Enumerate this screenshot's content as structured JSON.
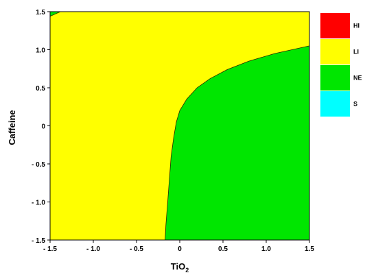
{
  "chart_data": {
    "type": "area",
    "xlabel": "TiO",
    "xlabel_subscript": "2",
    "ylabel": "Caffeine",
    "xlim": [
      -1.5,
      1.5
    ],
    "ylim": [
      -1.5,
      1.5
    ],
    "x_ticks": [
      {
        "value": -1.5,
        "label": "- 1.5"
      },
      {
        "value": -1.0,
        "label": "- 1.0"
      },
      {
        "value": -0.5,
        "label": "- 0.5"
      },
      {
        "value": 0.0,
        "label": "0"
      },
      {
        "value": 0.5,
        "label": "0.5"
      },
      {
        "value": 1.0,
        "label": "1.0"
      },
      {
        "value": 1.5,
        "label": "1.5"
      }
    ],
    "y_ticks": [
      {
        "value": 1.5,
        "label": "1.5"
      },
      {
        "value": 1.0,
        "label": "1.0"
      },
      {
        "value": 0.5,
        "label": "0.5"
      },
      {
        "value": 0.0,
        "label": "0"
      },
      {
        "value": -0.5,
        "label": "- 0.5"
      },
      {
        "value": -1.0,
        "label": "- 1.0"
      },
      {
        "value": -1.5,
        "label": "- 1.5"
      }
    ],
    "grid": false,
    "legend_position": "right",
    "legend": [
      {
        "label": "HI",
        "color": "#ff0000"
      },
      {
        "label": "LI",
        "color": "#ffff00"
      },
      {
        "label": "NE",
        "color": "#00e600"
      },
      {
        "label": "S",
        "color": "#00ffff"
      }
    ],
    "regions": [
      {
        "class": "LI",
        "color": "#ffff00",
        "role": "background"
      },
      {
        "class": "NE",
        "color": "#00e600",
        "boundary": [
          [
            -0.17,
            -1.5
          ],
          [
            -0.16,
            -1.3
          ],
          [
            -0.14,
            -1.0
          ],
          [
            -0.12,
            -0.7
          ],
          [
            -0.1,
            -0.4
          ],
          [
            -0.07,
            -0.15
          ],
          [
            -0.04,
            0.05
          ],
          [
            0.0,
            0.2
          ],
          [
            0.08,
            0.35
          ],
          [
            0.2,
            0.5
          ],
          [
            0.35,
            0.62
          ],
          [
            0.55,
            0.74
          ],
          [
            0.8,
            0.85
          ],
          [
            1.1,
            0.95
          ],
          [
            1.5,
            1.05
          ],
          [
            1.5,
            -1.5
          ]
        ]
      },
      {
        "class": "NE",
        "color": "#00e600",
        "boundary": [
          [
            -1.5,
            1.5
          ],
          [
            -1.5,
            1.44
          ],
          [
            -1.38,
            1.5
          ]
        ]
      }
    ]
  }
}
